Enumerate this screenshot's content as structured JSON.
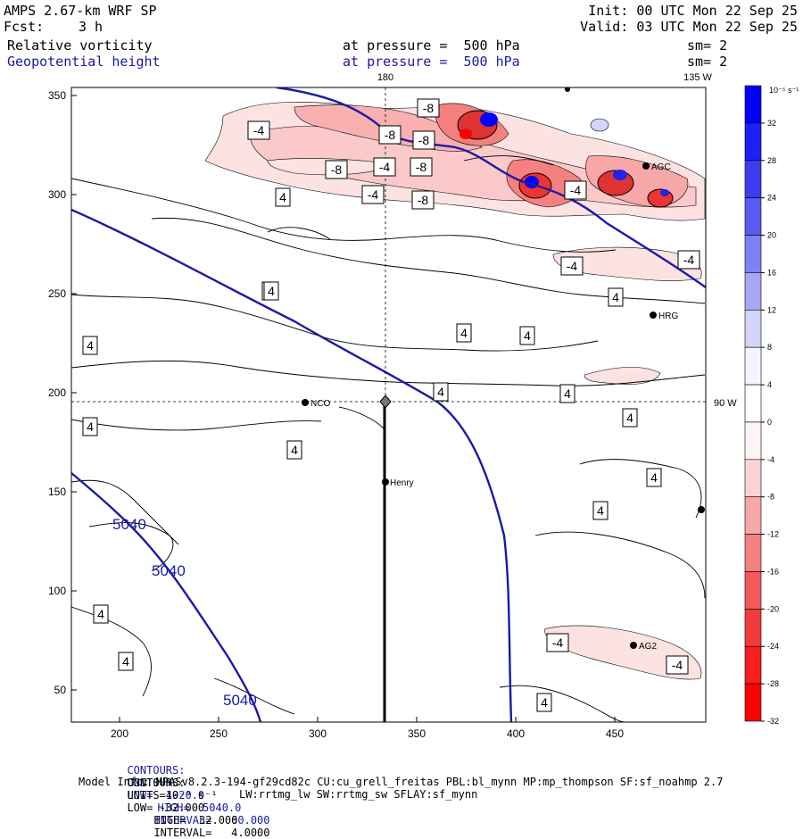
{
  "header": {
    "title": "AMPS 2.67-km WRF SP",
    "forecast_label": "Fcst:",
    "forecast_value": "3 h",
    "init": "Init: 00 UTC Mon 22 Sep 25",
    "valid": "Valid: 03 UTC Mon 22 Sep 25",
    "field1": {
      "name": "Relative vorticity",
      "pressure_text": "at pressure =  500 hPa",
      "sm": "sm= 2"
    },
    "field2": {
      "name": "Geopotential height",
      "pressure_text": "at pressure =  500 hPa",
      "sm": "sm= 2"
    }
  },
  "map": {
    "top_labels": {
      "lon180": "180",
      "lon135w": "135 W"
    },
    "side_label": "90 W",
    "x_ticks": [
      "200",
      "250",
      "300",
      "350",
      "400",
      "450"
    ],
    "y_ticks": [
      "350",
      "300",
      "250",
      "200",
      "150",
      "100",
      "50"
    ],
    "stations": [
      "NCO",
      "Henry",
      "HRG",
      "AGC",
      "AG2"
    ],
    "height_labels": [
      "5040",
      "5040",
      "5040"
    ],
    "vort_labels": [
      "-4",
      "-8",
      "-8",
      "-8",
      "-4",
      "-8",
      "-4",
      "-8",
      "-8",
      "-4",
      "4",
      "-4",
      "-4",
      "4",
      "4",
      "4",
      "4",
      "4",
      "4",
      "4",
      "4",
      "4",
      "4",
      "4",
      "4",
      "4",
      "4",
      "4",
      "-4",
      "-4",
      "4"
    ]
  },
  "colorbar": {
    "unit_label": "10⁻⁵ s⁻¹",
    "ticks": [
      "32",
      "28",
      "24",
      "20",
      "16",
      "12",
      "8",
      "4",
      "0",
      "-4",
      "-8",
      "-12",
      "-16",
      "-20",
      "-24",
      "-28",
      "-32"
    ],
    "colors": [
      "#0000ff",
      "#1e1ef6",
      "#3c3cf0",
      "#5a5af2",
      "#8080f5",
      "#a7a7f7",
      "#d3d3fb",
      "#f4f4ff",
      "#ffffff",
      "#fff4f4",
      "#fbd3d3",
      "#f7a7a7",
      "#f58080",
      "#f25a5a",
      "#f03c3c",
      "#f61e1e",
      "#ff0000"
    ]
  },
  "footer": {
    "line1_prefix": "CONTOURS:",
    "line1_units": "UNITS=m",
    "line1_low": "LOW=  4920.0",
    "line1_high": "HIGH=  5040.0",
    "line1_interval": "INTERVAL=   60.000",
    "line2_prefix": "CONTOURS:",
    "line2_units": "UNITS=10⁻⁵ s⁻¹",
    "line2_low": "LOW= -32.000",
    "line2_high": "HIGH=  32.000",
    "line2_interval": "INTERVAL=   4.0000",
    "model_info": "Model Info: MPASv8.2.3-194-gf29cd82c CU:cu_grell_freitas PBL:bl_mynn MP:mp_thompson SF:sf_noahmp 2.7",
    "model_info2": "LW:rrtmg_lw SW:rrtmg_sw SFLAY:sf_mynn"
  }
}
